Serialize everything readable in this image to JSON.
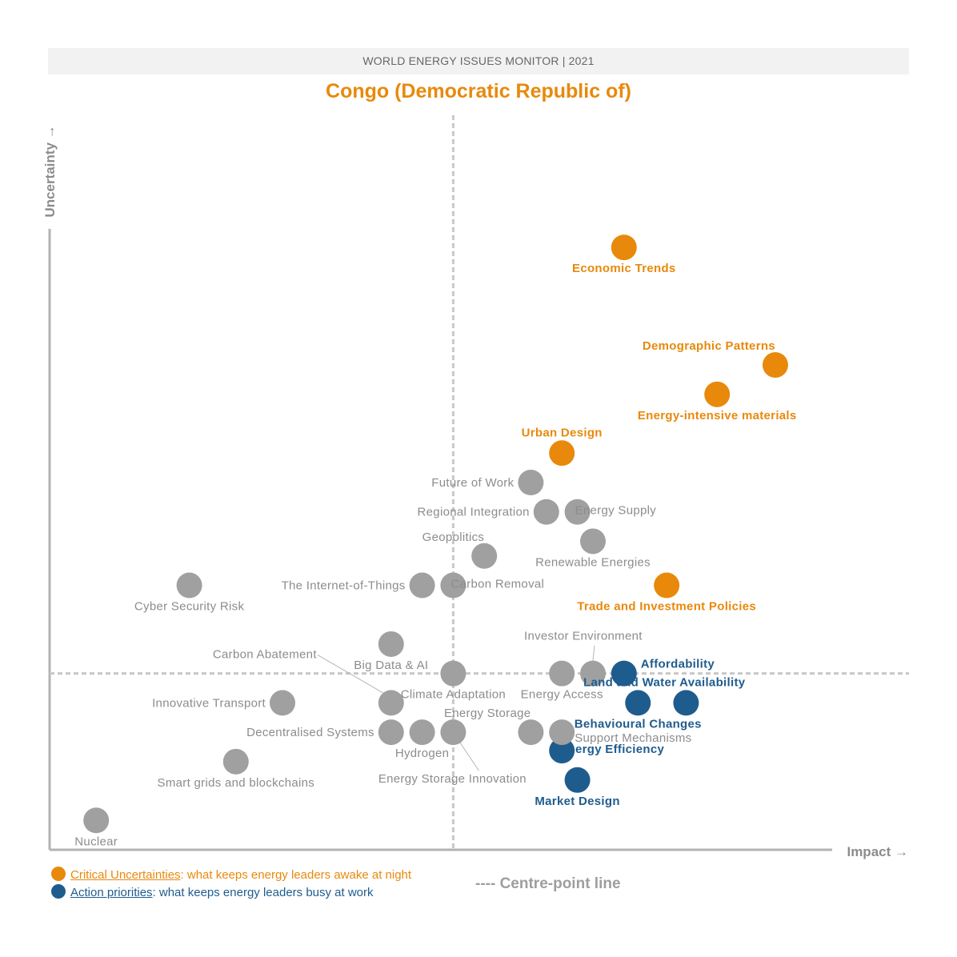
{
  "header": {
    "banner": "WORLD ENERGY ISSUES MONITOR | 2021",
    "title": "Congo (Democratic Republic of)"
  },
  "colors": {
    "critical": "#e8890c",
    "action": "#1f5c8e",
    "other": "#a0a0a0",
    "label_other": "#8c8c8c",
    "axis": "#b3b3b3",
    "centre_line": "#c8c8c8"
  },
  "legend": {
    "critical_label": "Critical Uncertainties",
    "critical_desc": ": what keeps energy leaders awake at night",
    "action_label": "Action priorities",
    "action_desc": ": what keeps energy leaders busy at work",
    "centre_line": "---- Centre-point line"
  },
  "chart_data": {
    "type": "scatter",
    "title": "Congo (Democratic Republic of)",
    "xlabel": "Impact →",
    "ylabel": "Uncertainty →",
    "xlim": [
      0,
      100
    ],
    "ylim": [
      0,
      100
    ],
    "centre": {
      "x": 52.0,
      "y": 24.0
    },
    "grid": false,
    "series": [
      {
        "name": "Critical Uncertainties",
        "category": "critical",
        "points": [
          {
            "label": "Economic Trends",
            "x": 74.0,
            "y": 82.0,
            "pos": "below"
          },
          {
            "label": "Demographic Patterns",
            "x": 93.5,
            "y": 66.0,
            "pos": "above-left"
          },
          {
            "label": "Energy-intensive materials",
            "x": 86.0,
            "y": 62.0,
            "pos": "below"
          },
          {
            "label": "Urban Design",
            "x": 66.0,
            "y": 54.0,
            "pos": "above"
          },
          {
            "label": "Trade and Investment Policies",
            "x": 79.5,
            "y": 36.0,
            "pos": "below"
          }
        ]
      },
      {
        "name": "Action priorities",
        "category": "action",
        "points": [
          {
            "label": "Affordability",
            "x": 74.0,
            "y": 24.0,
            "pos": "above-right"
          },
          {
            "label": "Land and Water Availability",
            "x": 82.0,
            "y": 20.0,
            "pos": "above-right-far"
          },
          {
            "label": "Behavioural Changes",
            "x": 75.8,
            "y": 20.0,
            "pos": "below"
          },
          {
            "label": "Energy Efficiency",
            "x": 66.0,
            "y": 13.5,
            "pos": "right"
          },
          {
            "label": "Market Design",
            "x": 68.0,
            "y": 9.5,
            "pos": "below"
          }
        ]
      },
      {
        "name": "Other issues",
        "category": "other",
        "points": [
          {
            "label": "Future of Work",
            "x": 62.0,
            "y": 50.0,
            "pos": "left"
          },
          {
            "label": "Regional Integration",
            "x": 64.0,
            "y": 46.0,
            "pos": "left"
          },
          {
            "label": "Energy Supply",
            "x": 68.0,
            "y": 46.0,
            "pos": "right"
          },
          {
            "label": "Renewable Energies",
            "x": 70.0,
            "y": 42.0,
            "pos": "below"
          },
          {
            "label": "Geopolitics",
            "x": 56.0,
            "y": 40.0,
            "pos": "above-left"
          },
          {
            "label": "The Internet-of-Things",
            "x": 48.0,
            "y": 36.0,
            "pos": "left"
          },
          {
            "label": "Carbon Removal",
            "x": 52.0,
            "y": 36.0,
            "pos": "right"
          },
          {
            "label": "Cyber Security Risk",
            "x": 18.0,
            "y": 36.0,
            "pos": "below"
          },
          {
            "label": "Big Data & AI",
            "x": 44.0,
            "y": 28.0,
            "pos": "below"
          },
          {
            "label": "Investor Environment",
            "x": 70.0,
            "y": 24.0,
            "pos": "callout-investor"
          },
          {
            "label": "Energy Access",
            "x": 66.0,
            "y": 24.0,
            "pos": "below"
          },
          {
            "label": "Climate Adaptation",
            "x": 52.0,
            "y": 24.0,
            "pos": "below"
          },
          {
            "label": "Carbon Abatement",
            "x": 44.0,
            "y": 20.0,
            "pos": "callout-abatement"
          },
          {
            "label": "Innovative Transport",
            "x": 30.0,
            "y": 20.0,
            "pos": "left"
          },
          {
            "label": "Decentralised Systems",
            "x": 44.0,
            "y": 16.0,
            "pos": "left"
          },
          {
            "label": "Hydrogen",
            "x": 48.0,
            "y": 16.0,
            "pos": "below"
          },
          {
            "label": "Energy Storage Innovation",
            "x": 52.0,
            "y": 16.0,
            "pos": "callout-storage-innovation"
          },
          {
            "label": "Energy Storage",
            "x": 62.0,
            "y": 16.0,
            "pos": "above-left"
          },
          {
            "label": "Support Mechanisms",
            "x": 66.0,
            "y": 16.0,
            "pos": "below-right"
          },
          {
            "label": "Smart grids and blockchains",
            "x": 24.0,
            "y": 12.0,
            "pos": "below"
          },
          {
            "label": "Nuclear",
            "x": 6.0,
            "y": 4.0,
            "pos": "below"
          }
        ]
      }
    ]
  }
}
